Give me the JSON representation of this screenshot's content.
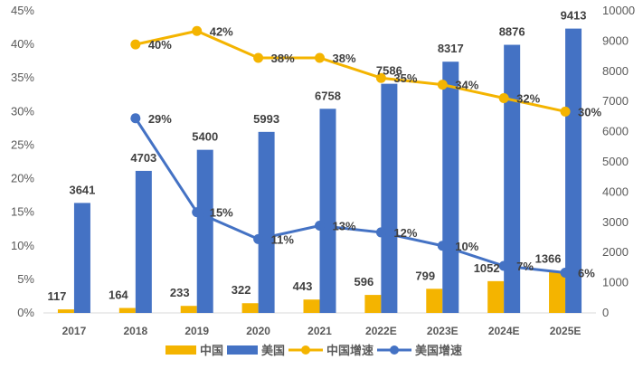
{
  "chart_data": {
    "type": "bar",
    "categories": [
      "2017",
      "2018",
      "2019",
      "2020",
      "2021",
      "2022E",
      "2023E",
      "2024E",
      "2025E"
    ],
    "series": [
      {
        "name": "中国",
        "kind": "bar",
        "axis": "right",
        "color": "#F4B400",
        "values": [
          117,
          164,
          233,
          322,
          443,
          596,
          799,
          1052,
          1366
        ],
        "labels": [
          "117",
          "164",
          "233",
          "322",
          "443",
          "596",
          "799",
          "1052",
          "1366"
        ]
      },
      {
        "name": "美国",
        "kind": "bar",
        "axis": "right",
        "color": "#4472C4",
        "values": [
          3641,
          4703,
          5400,
          5993,
          6758,
          7586,
          8317,
          8876,
          9413
        ],
        "labels": [
          "3641",
          "4703",
          "5400",
          "5993",
          "6758",
          "7586",
          "8317",
          "8876",
          "9413"
        ]
      },
      {
        "name": "中国增速",
        "kind": "line",
        "axis": "left",
        "color": "#F4B400",
        "values": [
          null,
          40,
          42,
          38,
          38,
          35,
          34,
          32,
          30
        ],
        "labels": [
          "",
          "40%",
          "42%",
          "38%",
          "38%",
          "35%",
          "34%",
          "32%",
          "30%"
        ]
      },
      {
        "name": "美国增速",
        "kind": "line",
        "axis": "left",
        "color": "#4472C4",
        "values": [
          null,
          29,
          15,
          11,
          13,
          12,
          10,
          7,
          6
        ],
        "labels": [
          "",
          "29%",
          "15%",
          "11%",
          "13%",
          "12%",
          "10%",
          "7%",
          "6%"
        ]
      }
    ],
    "y_left": {
      "ticks": [
        "0%",
        "5%",
        "10%",
        "15%",
        "20%",
        "25%",
        "30%",
        "35%",
        "40%",
        "45%"
      ],
      "ylim": [
        0,
        45
      ]
    },
    "y_right": {
      "ticks": [
        "0",
        "1000",
        "2000",
        "3000",
        "4000",
        "5000",
        "6000",
        "7000",
        "8000",
        "9000",
        "10000"
      ],
      "ylim": [
        0,
        10000
      ]
    },
    "legend": {
      "position": "bottom"
    },
    "grid": false
  }
}
